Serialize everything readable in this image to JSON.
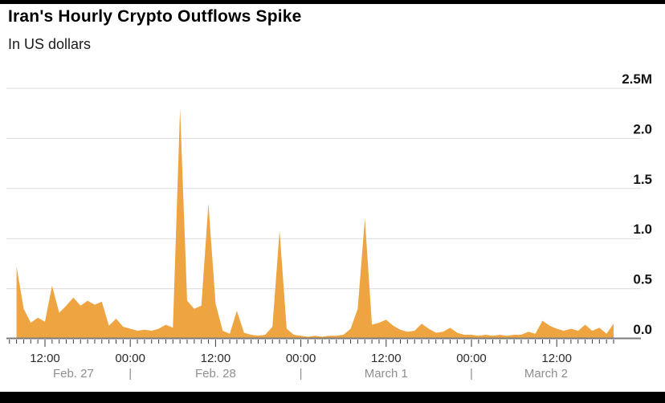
{
  "header": {
    "title": "Iran's Hourly Crypto Outflows Spike",
    "subtitle": "In US dollars"
  },
  "chart_data": {
    "type": "area",
    "title": "Iran's Hourly Crypto Outflows Spike",
    "subtitle": "In US dollars",
    "unit": "US dollars (millions)",
    "fill_color": "#EEA440",
    "grid": true,
    "gridline_color": "#dcdcdc",
    "axis_line_color": "#7b7b7b",
    "tick_color": "#3a3a3a",
    "legend": "none",
    "y_axis": {
      "side": "right",
      "min": 0,
      "max": 2.5,
      "ticks": [
        0,
        0.5,
        1.0,
        1.5,
        2.0,
        2.5
      ],
      "tick_labels": [
        "0.0",
        "0.5",
        "1.0",
        "1.5",
        "2.0",
        "2.5M"
      ]
    },
    "x_axis": {
      "unit": "hours since Feb. 27 00:00",
      "axis_start_hour": 7,
      "axis_end_hour": 92.5,
      "minor_tick_every_hours": 1,
      "major_ticks": [
        {
          "hour": 12,
          "label": "12:00"
        },
        {
          "hour": 24,
          "label": "00:00"
        },
        {
          "hour": 36,
          "label": "12:00"
        },
        {
          "hour": 48,
          "label": "00:00"
        },
        {
          "hour": 60,
          "label": "12:00"
        },
        {
          "hour": 72,
          "label": "00:00"
        },
        {
          "hour": 84,
          "label": "12:00"
        }
      ],
      "day_labels": [
        {
          "label": "Feb. 27",
          "center_hour": 16
        },
        {
          "label": "Feb. 28",
          "center_hour": 36
        },
        {
          "label": "March 1",
          "center_hour": 60
        },
        {
          "label": "March 2",
          "center_hour": 82.5
        }
      ],
      "day_separators_hours": [
        24,
        48,
        72
      ],
      "separator_char": "|"
    },
    "series": [
      {
        "name": "Hourly crypto outflows (USD millions)",
        "start_hour": 8,
        "step_hours": 1,
        "values_musd": [
          0.72,
          0.3,
          0.16,
          0.21,
          0.17,
          0.53,
          0.26,
          0.33,
          0.41,
          0.33,
          0.38,
          0.34,
          0.37,
          0.13,
          0.2,
          0.12,
          0.1,
          0.08,
          0.09,
          0.08,
          0.1,
          0.14,
          0.11,
          2.3,
          0.38,
          0.3,
          0.33,
          1.35,
          0.35,
          0.08,
          0.05,
          0.28,
          0.06,
          0.04,
          0.03,
          0.04,
          0.12,
          1.08,
          0.1,
          0.04,
          0.03,
          0.02,
          0.03,
          0.02,
          0.03,
          0.03,
          0.04,
          0.1,
          0.3,
          1.2,
          0.14,
          0.16,
          0.19,
          0.13,
          0.09,
          0.07,
          0.08,
          0.15,
          0.1,
          0.06,
          0.07,
          0.11,
          0.06,
          0.04,
          0.04,
          0.03,
          0.04,
          0.03,
          0.04,
          0.03,
          0.04,
          0.04,
          0.07,
          0.05,
          0.18,
          0.13,
          0.1,
          0.08,
          0.1,
          0.08,
          0.14,
          0.08,
          0.11,
          0.05,
          0.15
        ]
      }
    ],
    "annotations": {
      "peak_value_musd": 2.3,
      "peak_time": "Feb. 28 ~07:00"
    }
  }
}
